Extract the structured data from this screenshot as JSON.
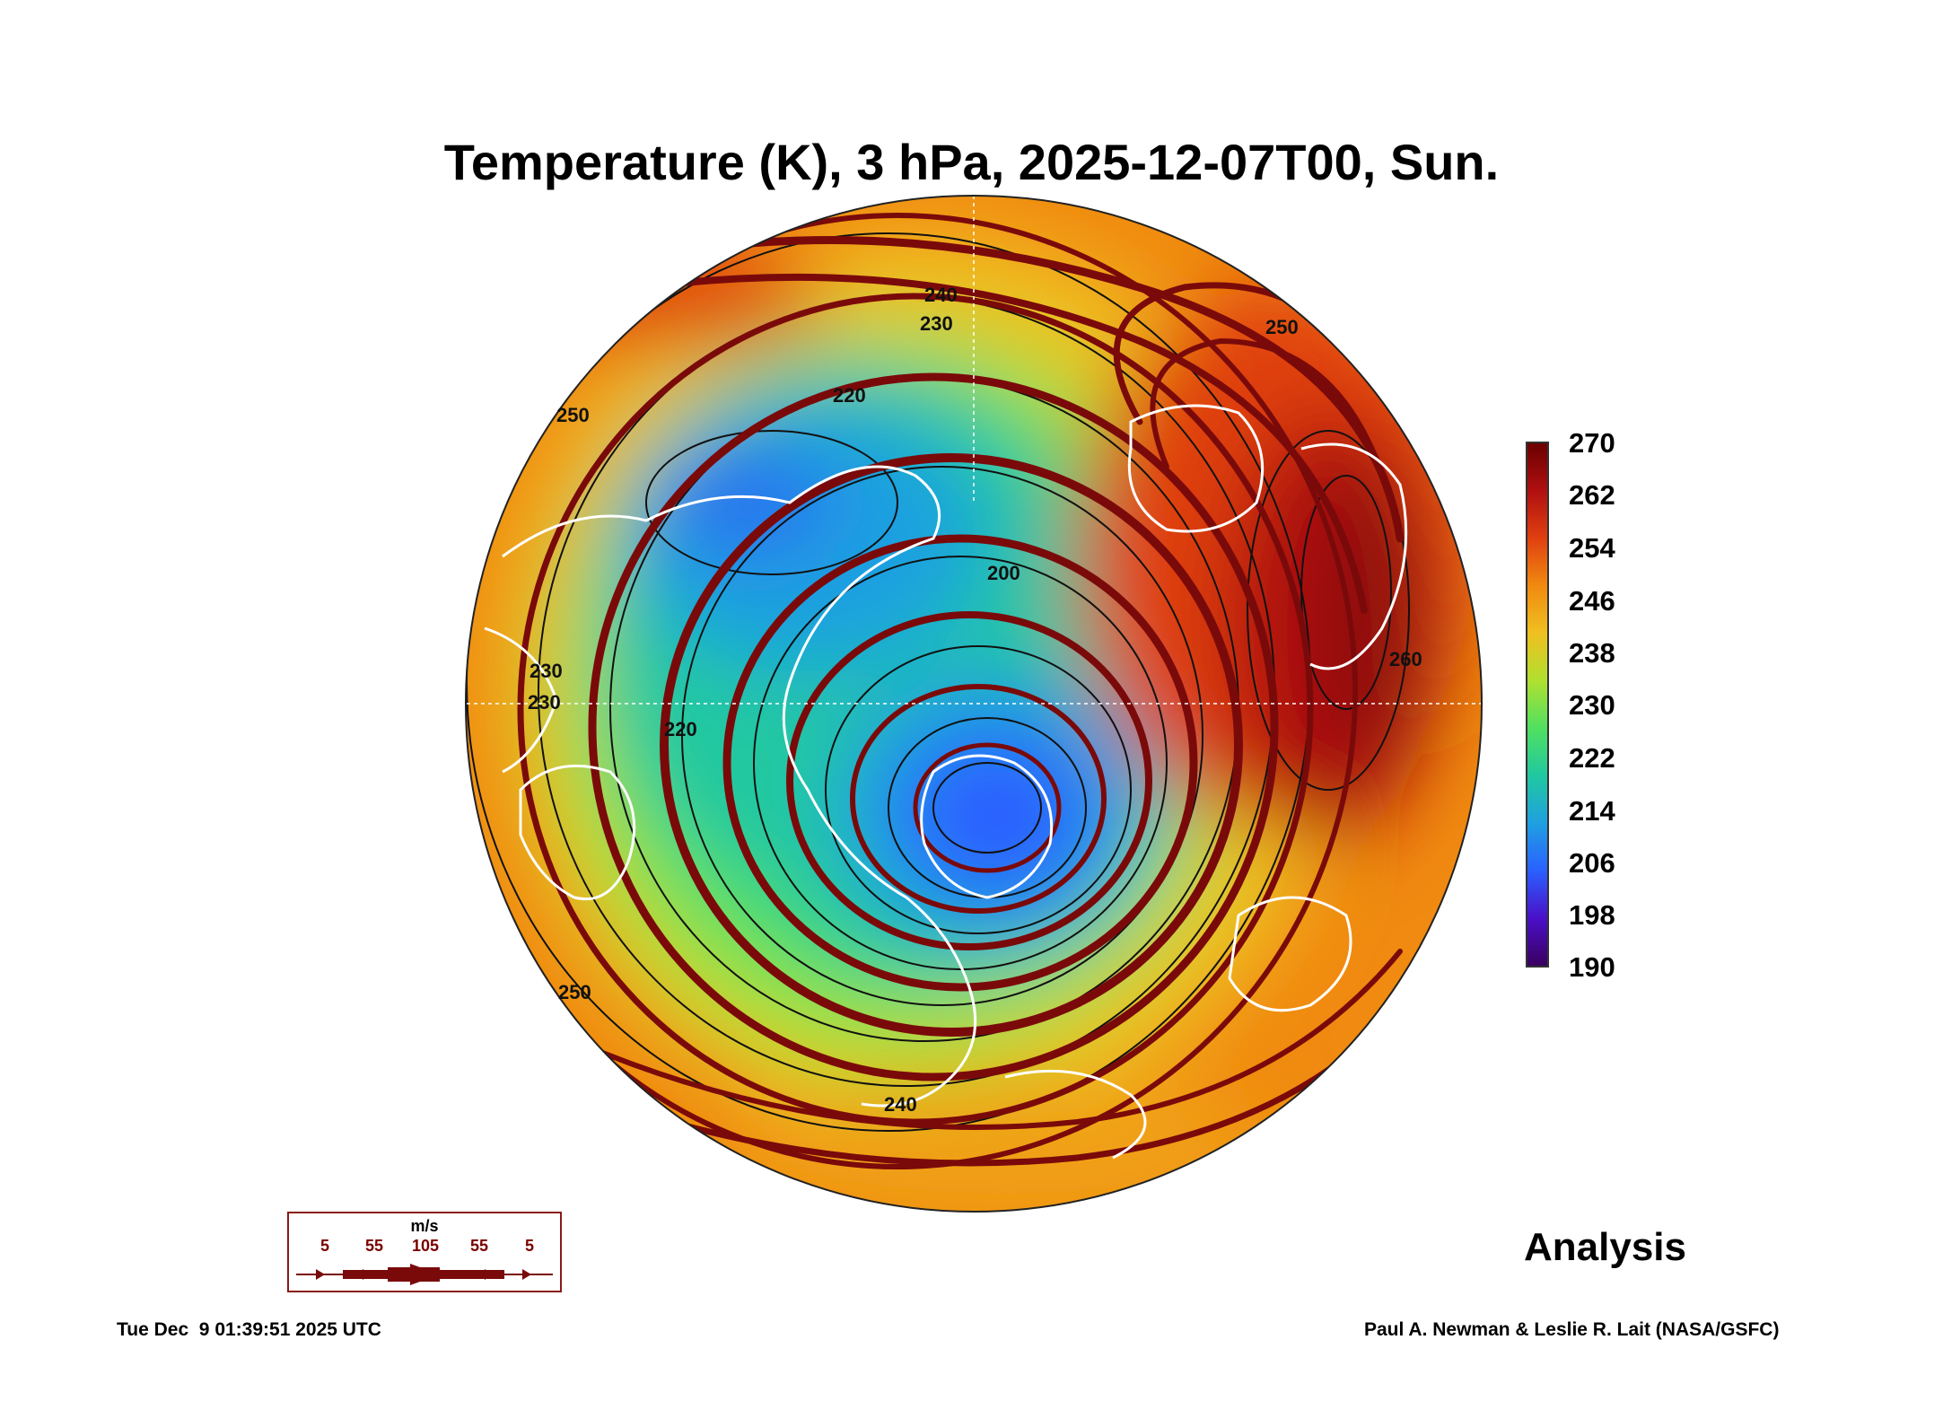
{
  "title": "Temperature (K), 3 hPa, 2025-12-07T00, Sun.",
  "colorbar": {
    "ticks": [
      "270",
      "262",
      "254",
      "246",
      "238",
      "230",
      "222",
      "214",
      "206",
      "198",
      "190"
    ],
    "colors": [
      "#3a0060",
      "#4a10c8",
      "#2a60ff",
      "#1fa0e0",
      "#20c8a0",
      "#50e060",
      "#b0e030",
      "#f0c020",
      "#f08a10",
      "#e04010",
      "#b01010",
      "#6a0000"
    ]
  },
  "contour_labels": [
    "240",
    "230",
    "220",
    "200",
    "220",
    "230",
    "250",
    "260",
    "240",
    "230",
    "250",
    "250"
  ],
  "wind_legend": {
    "unit": "m/s",
    "speeds": [
      "5",
      "55",
      "105",
      "55",
      "5"
    ]
  },
  "analysis_label": "Analysis",
  "timestamp": "Tue Dec  9 01:39:51 2025 UTC",
  "credit": "Paul A. Newman & Leslie R. Lait (NASA/GSFC)",
  "colors": {
    "streamline": "#7a0a0a",
    "coastline": "#ffffff",
    "contour": "#111111"
  }
}
